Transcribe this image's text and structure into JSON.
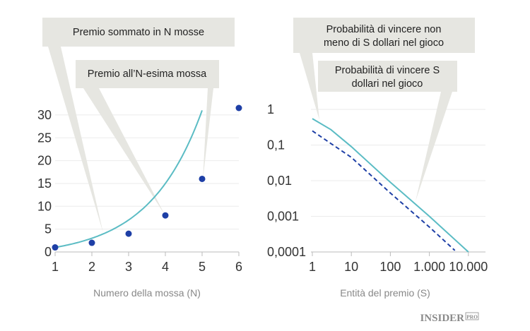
{
  "colors": {
    "curve": "#5bbcc4",
    "points": "#1e3fa6",
    "callout": "#e6e6e1",
    "axis": "#bbbbbb"
  },
  "chart_data": [
    {
      "type": "scatter+line",
      "xlabel": "Numero della mossa (N)",
      "ylabel": "",
      "xlim": [
        1,
        6
      ],
      "ylim": [
        0,
        30
      ],
      "x_ticks": [
        "1",
        "2",
        "3",
        "4",
        "5",
        "6"
      ],
      "y_ticks": [
        "0",
        "5",
        "10",
        "15",
        "20",
        "25",
        "30"
      ],
      "grid": true,
      "series": [
        {
          "name": "Premio sommato in N mosse",
          "style": "line",
          "x": [
            1,
            1.5,
            2,
            2.5,
            3,
            3.5,
            4,
            4.5,
            5
          ],
          "y": [
            1,
            1.83,
            3,
            4.66,
            7,
            10.3,
            15,
            21.6,
            31
          ]
        },
        {
          "name": "Premio all'N-esima mossa",
          "style": "points",
          "x": [
            1,
            2,
            3,
            4,
            5,
            6
          ],
          "y": [
            1,
            2,
            4,
            8,
            16,
            32
          ]
        }
      ],
      "annotations": [
        "Premio sommato in N mosse",
        "Premio all’N-esima mossa"
      ]
    },
    {
      "type": "line",
      "xlabel": "Entità del premio (S)",
      "ylabel": "",
      "xscale": "log",
      "yscale": "log",
      "xlim": [
        1,
        10000
      ],
      "ylim": [
        0.0001,
        1
      ],
      "x_ticks": [
        "1",
        "10",
        "100",
        "1.000",
        "10.000"
      ],
      "y_ticks": [
        "1",
        "0,1",
        "0,01",
        "0,001",
        "0,0001"
      ],
      "grid": true,
      "series": [
        {
          "name": "Probabilità di vincere non meno di S dollari nel gioco",
          "style": "solid",
          "x": [
            1,
            3,
            10,
            100,
            1000,
            10000
          ],
          "y": [
            0.55,
            0.27,
            0.09,
            0.009,
            0.001,
            0.0001
          ]
        },
        {
          "name": "Probabilità di vincere S dollari nel gioco",
          "style": "dashed",
          "x": [
            1,
            3,
            10,
            100,
            1000,
            4500
          ],
          "y": [
            0.25,
            0.11,
            0.045,
            0.0045,
            0.0005,
            0.00011
          ]
        }
      ],
      "annotations": [
        "Probabilità di vincere non",
        "meno di S dollari nel gioco",
        "Probabilità di vincere S",
        "dollari nel gioco"
      ]
    }
  ],
  "logo": "INSIDER PRO"
}
